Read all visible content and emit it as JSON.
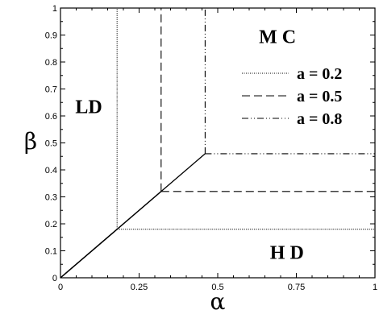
{
  "chart_data": {
    "type": "line",
    "xlabel": "α",
    "ylabel": "β",
    "xlim": [
      0,
      1
    ],
    "ylim": [
      0,
      1
    ],
    "x_ticks": [
      {
        "value": 0,
        "label": "0"
      },
      {
        "value": 0.25,
        "label": "0.25"
      },
      {
        "value": 0.5,
        "label": "0.5"
      },
      {
        "value": 0.75,
        "label": "0.75"
      },
      {
        "value": 1,
        "label": "1"
      }
    ],
    "y_ticks": [
      {
        "value": 0,
        "label": "0"
      },
      {
        "value": 0.1,
        "label": "0.1"
      },
      {
        "value": 0.2,
        "label": "0.2"
      },
      {
        "value": 0.3,
        "label": "0.3"
      },
      {
        "value": 0.4,
        "label": "0.4"
      },
      {
        "value": 0.5,
        "label": "0.5"
      },
      {
        "value": 0.6,
        "label": "0.6"
      },
      {
        "value": 0.7,
        "label": "0.7"
      },
      {
        "value": 0.8,
        "label": "0.8"
      },
      {
        "value": 0.9,
        "label": "0.9"
      },
      {
        "value": 1,
        "label": "1"
      }
    ],
    "grid": false,
    "legend_position": "top-right",
    "regions": [
      {
        "label": "LD",
        "x": 0.09,
        "y": 0.61
      },
      {
        "label": "M C",
        "x": 0.69,
        "y": 0.87
      },
      {
        "label": "H D",
        "x": 0.72,
        "y": 0.07
      }
    ],
    "series": [
      {
        "name": "a = 0.2",
        "dash": "dotted",
        "boundaries": [
          {
            "x": [
              0,
              0.18
            ],
            "y": [
              0,
              0.18
            ]
          },
          {
            "x": [
              0.18,
              0.18
            ],
            "y": [
              0.18,
              1
            ]
          },
          {
            "x": [
              0.18,
              1
            ],
            "y": [
              0.18,
              0.18
            ]
          }
        ]
      },
      {
        "name": "a = 0.5",
        "dash": "dashed",
        "boundaries": [
          {
            "x": [
              0,
              0.32
            ],
            "y": [
              0,
              0.32
            ]
          },
          {
            "x": [
              0.32,
              0.32
            ],
            "y": [
              0.32,
              1
            ]
          },
          {
            "x": [
              0.32,
              1
            ],
            "y": [
              0.32,
              0.32
            ]
          }
        ]
      },
      {
        "name": "a = 0.8",
        "dash": "dash-dot-dot",
        "boundaries": [
          {
            "x": [
              0,
              0.46
            ],
            "y": [
              0,
              0.46
            ]
          },
          {
            "x": [
              0.46,
              0.46
            ],
            "y": [
              0.46,
              1
            ]
          },
          {
            "x": [
              0.46,
              1
            ],
            "y": [
              0.46,
              0.46
            ]
          }
        ]
      }
    ],
    "colors": {
      "line": "#000000",
      "background": "#ffffff"
    }
  }
}
